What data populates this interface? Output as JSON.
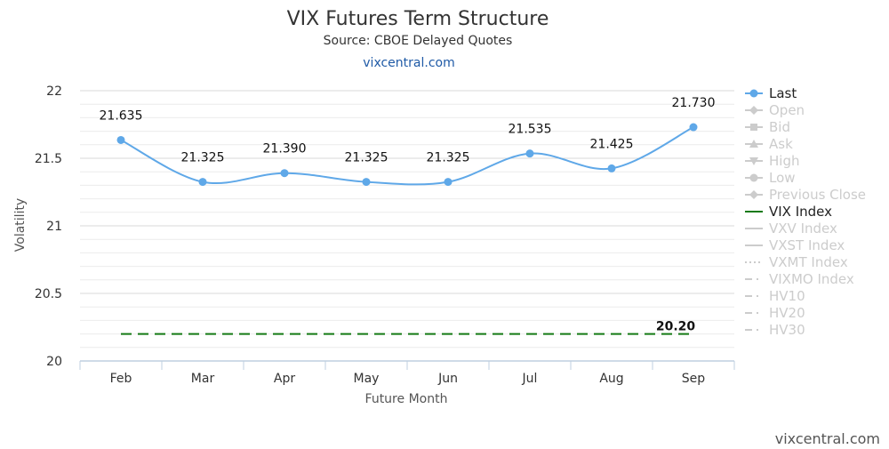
{
  "chart_data": {
    "type": "line",
    "title": "VIX Futures Term Structure",
    "subtitle": "Source: CBOE Delayed Quotes",
    "link": "vixcentral.com",
    "xlabel": "Future Month",
    "ylabel": "Volatility",
    "categories": [
      "Feb",
      "Mar",
      "Apr",
      "May",
      "Jun",
      "Jul",
      "Aug",
      "Sep"
    ],
    "ylim": [
      20,
      22
    ],
    "yticks": [
      "20",
      "20.5",
      "21",
      "21.5",
      "22"
    ],
    "grid": true,
    "legend_position": "right",
    "series": [
      {
        "name": "Last",
        "values": [
          21.635,
          21.325,
          21.39,
          21.325,
          21.325,
          21.535,
          21.425,
          21.73
        ],
        "labels": [
          "21.635",
          "21.325",
          "21.390",
          "21.325",
          "21.325",
          "21.535",
          "21.425",
          "21.730"
        ],
        "color": "#5fa8e8"
      },
      {
        "name": "VIX Index",
        "constant": 20.2,
        "label": "20.20",
        "color": "#157a15"
      }
    ],
    "legend": [
      {
        "name": "Last",
        "active": true,
        "symbol": "circle-line",
        "color": "#5fa8e8"
      },
      {
        "name": "Open",
        "active": false,
        "symbol": "diamond-line"
      },
      {
        "name": "Bid",
        "active": false,
        "symbol": "square-line"
      },
      {
        "name": "Ask",
        "active": false,
        "symbol": "triangle-line"
      },
      {
        "name": "High",
        "active": false,
        "symbol": "triangle-down-line"
      },
      {
        "name": "Low",
        "active": false,
        "symbol": "circle-line"
      },
      {
        "name": "Previous Close",
        "active": false,
        "symbol": "diamond-line"
      },
      {
        "name": "VIX Index",
        "active": true,
        "symbol": "solid-line",
        "color": "#157a15"
      },
      {
        "name": "VXV Index",
        "active": false,
        "symbol": "solid-line"
      },
      {
        "name": "VXST Index",
        "active": false,
        "symbol": "solid-line"
      },
      {
        "name": "VXMT Index",
        "active": false,
        "symbol": "dotted-line"
      },
      {
        "name": "VIXMO Index",
        "active": false,
        "symbol": "dashdot-line"
      },
      {
        "name": "HV10",
        "active": false,
        "symbol": "dashdot-line"
      },
      {
        "name": "HV20",
        "active": false,
        "symbol": "dashdot-line"
      },
      {
        "name": "HV30",
        "active": false,
        "symbol": "dashdot-line"
      }
    ],
    "credits": "vixcentral.com"
  }
}
